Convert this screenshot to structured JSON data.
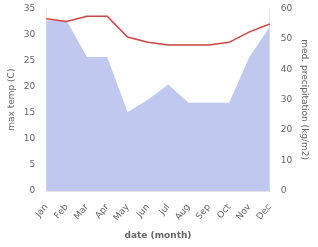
{
  "chart_data": {
    "type": "line",
    "categories": [
      "Jan",
      "Feb",
      "Mar",
      "Apr",
      "May",
      "Jun",
      "Jul",
      "Aug",
      "Sep",
      "Oct",
      "Nov",
      "Dec"
    ],
    "xlabel": "date (month)",
    "ylabel": "max temp (C)",
    "y2label": "med. precipitation (kg/m2)",
    "series": [
      {
        "type": "area",
        "color": "#c0c8f0",
        "axis": "y2",
        "values": [
          56.0,
          56.0,
          44.0,
          44.0,
          26.0,
          30.0,
          35.0,
          29.0,
          29.0,
          29.0,
          44.0,
          54.0
        ]
      },
      {
        "type": "line",
        "color": "#cc4444",
        "values": [
          33.0,
          32.5,
          33.5,
          33.5,
          29.5,
          28.5,
          28.0,
          28.0,
          28.0,
          28.5,
          30.5,
          32.0
        ]
      }
    ],
    "ylim": [
      0,
      35
    ],
    "yticks": [
      0,
      5,
      10,
      15,
      20,
      25,
      30,
      35
    ],
    "y2lim": [
      0,
      60
    ],
    "y2ticks": [
      0,
      10,
      20,
      30,
      40,
      50,
      60
    ],
    "grid": false
  }
}
